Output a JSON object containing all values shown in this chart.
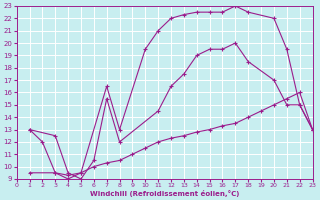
{
  "xlabel": "Windchill (Refroidissement éolien,°C)",
  "bg_color": "#c8eef0",
  "line_color": "#9b1d8c",
  "grid_color": "#ffffff",
  "xmin": 0,
  "xmax": 23,
  "ymin": 9,
  "ymax": 23,
  "curve1_x": [
    1,
    2,
    3,
    4,
    5,
    7,
    8,
    10,
    11,
    12,
    13,
    14,
    15,
    16,
    17,
    18,
    20,
    21,
    22,
    23
  ],
  "curve1_y": [
    13,
    12.0,
    9.5,
    9.0,
    9.5,
    16.5,
    13.0,
    19.5,
    21.0,
    22.0,
    22.3,
    22.5,
    22.5,
    22.5,
    23.0,
    22.5,
    22.0,
    19.5,
    15.0,
    13.0
  ],
  "curve2_x": [
    1,
    3,
    4,
    5,
    6,
    7,
    8,
    9,
    10,
    11,
    12,
    13,
    14,
    15,
    16,
    17,
    18,
    19,
    20,
    21,
    22,
    23
  ],
  "curve2_y": [
    9.5,
    9.5,
    9.3,
    9.5,
    10.0,
    10.3,
    10.5,
    11.0,
    11.5,
    12.0,
    12.3,
    12.5,
    12.8,
    13.0,
    13.3,
    13.5,
    14.0,
    14.5,
    15.0,
    15.5,
    16.0,
    13.0
  ],
  "curve3_x": [
    1,
    3,
    4,
    5,
    6,
    7,
    8,
    11,
    12,
    13,
    14,
    15,
    16,
    17,
    18,
    20,
    21,
    22,
    23
  ],
  "curve3_y": [
    13.0,
    12.5,
    9.5,
    9.0,
    10.5,
    15.5,
    12.0,
    14.5,
    16.5,
    17.5,
    19.0,
    19.5,
    19.5,
    20.0,
    18.5,
    17.0,
    15.0,
    15.0,
    13.0
  ]
}
